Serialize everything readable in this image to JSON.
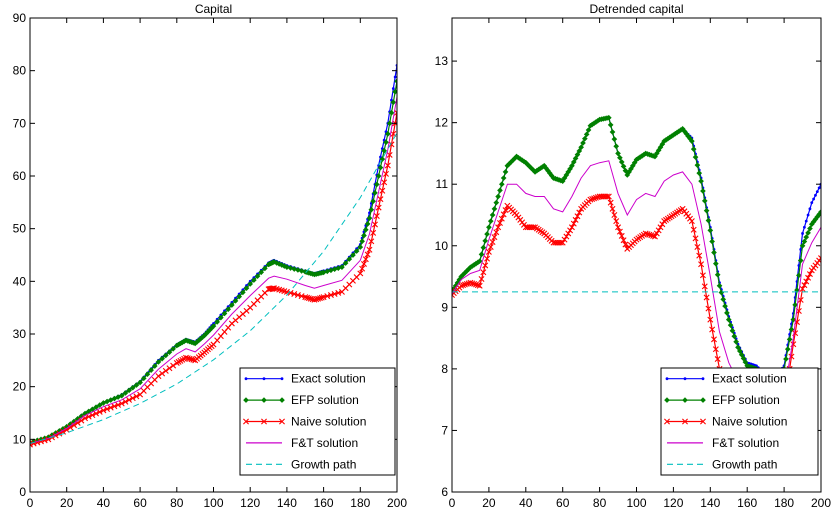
{
  "chart_data": [
    {
      "type": "line",
      "title": "Capital",
      "xlabel": "",
      "ylabel": "",
      "xlim": [
        0,
        200
      ],
      "ylim": [
        0,
        90
      ],
      "xticks": [
        0,
        20,
        40,
        60,
        80,
        100,
        120,
        140,
        160,
        180,
        200
      ],
      "yticks": [
        0,
        10,
        20,
        30,
        40,
        50,
        60,
        70,
        80,
        90
      ],
      "grid": false,
      "legend_position": "bottom-right",
      "series": [
        {
          "name": "Exact solution",
          "color": "#0000ff",
          "style": "solid",
          "marker": "dot",
          "x": [
            0,
            10,
            20,
            30,
            40,
            50,
            60,
            70,
            80,
            85,
            90,
            95,
            100,
            110,
            120,
            130,
            133,
            140,
            150,
            155,
            160,
            170,
            180,
            185,
            190,
            195,
            200
          ],
          "y": [
            9.5,
            10.5,
            12.5,
            15,
            17,
            18.5,
            21,
            25,
            28,
            29,
            28.5,
            30,
            32,
            36,
            40,
            43.5,
            44,
            43,
            42,
            41.5,
            42,
            43,
            47,
            53,
            62,
            70,
            81
          ]
        },
        {
          "name": "EFP solution",
          "color": "#008000",
          "style": "solid",
          "marker": "diamond",
          "x": [
            0,
            10,
            20,
            30,
            40,
            50,
            60,
            70,
            80,
            85,
            90,
            95,
            100,
            110,
            120,
            130,
            133,
            140,
            150,
            155,
            160,
            170,
            180,
            185,
            190,
            195,
            200
          ],
          "y": [
            9.4,
            10.4,
            12.4,
            14.9,
            16.9,
            18.3,
            20.8,
            24.7,
            27.8,
            28.8,
            28.2,
            29.7,
            31.5,
            35.5,
            39.5,
            43.2,
            43.7,
            42.7,
            41.8,
            41.3,
            41.7,
            42.7,
            46.5,
            52,
            60,
            68,
            78
          ]
        },
        {
          "name": "Naive solution",
          "color": "#ff0000",
          "style": "solid",
          "marker": "x",
          "x": [
            0,
            10,
            20,
            30,
            40,
            50,
            60,
            70,
            80,
            85,
            90,
            95,
            100,
            110,
            120,
            130,
            133,
            140,
            150,
            155,
            160,
            170,
            180,
            185,
            190,
            195,
            200
          ],
          "y": [
            9,
            10,
            11.8,
            14,
            15.5,
            16.8,
            18.5,
            22,
            24.5,
            25.5,
            25,
            26.5,
            28,
            32,
            35,
            38.5,
            38.7,
            38,
            37,
            36.5,
            37,
            38,
            41.5,
            46,
            54,
            62,
            72
          ]
        },
        {
          "name": "F&T solution",
          "color": "#cc00cc",
          "style": "solid",
          "marker": "none",
          "x": [
            0,
            10,
            20,
            30,
            40,
            50,
            60,
            70,
            80,
            85,
            90,
            95,
            100,
            110,
            120,
            130,
            133,
            140,
            150,
            155,
            160,
            170,
            180,
            185,
            190,
            195,
            200
          ],
          "y": [
            9.2,
            10.2,
            12.1,
            14.5,
            16.2,
            17.5,
            19.6,
            23.3,
            26.2,
            27.2,
            26.6,
            28.1,
            29.8,
            33.8,
            37.3,
            40.6,
            41,
            40.4,
            39.2,
            38.7,
            39.2,
            40.2,
            44,
            49,
            57,
            65,
            75
          ]
        },
        {
          "name": "Growth path",
          "color": "#00bfbf",
          "style": "dashed",
          "marker": "none",
          "x": [
            0,
            20,
            40,
            60,
            80,
            100,
            120,
            140,
            160,
            180,
            200
          ],
          "y": [
            9.2,
            11.25,
            13.75,
            16.8,
            20.5,
            25.1,
            30.6,
            37.4,
            45.7,
            55.9,
            68.2
          ]
        }
      ]
    },
    {
      "type": "line",
      "title": "Detrended capital",
      "xlabel": "",
      "ylabel": "",
      "xlim": [
        0,
        200
      ],
      "ylim": [
        6,
        13.7
      ],
      "xticks": [
        0,
        20,
        40,
        60,
        80,
        100,
        120,
        140,
        160,
        180,
        200
      ],
      "yticks": [
        6,
        7,
        8,
        9,
        10,
        11,
        12,
        13
      ],
      "grid": false,
      "legend_position": "bottom-right",
      "series": [
        {
          "name": "Exact solution",
          "color": "#0000ff",
          "style": "solid",
          "marker": "dot",
          "x": [
            0,
            5,
            10,
            15,
            20,
            25,
            30,
            35,
            40,
            45,
            50,
            55,
            60,
            65,
            70,
            75,
            80,
            85,
            90,
            95,
            100,
            105,
            110,
            115,
            120,
            125,
            130,
            135,
            140,
            145,
            150,
            155,
            160,
            165,
            170,
            175,
            180,
            185,
            190,
            195,
            200
          ],
          "y": [
            9.25,
            9.5,
            9.65,
            9.75,
            10.3,
            10.8,
            11.3,
            11.45,
            11.35,
            11.2,
            11.3,
            11.1,
            11.05,
            11.3,
            11.6,
            11.95,
            12.05,
            12.08,
            11.5,
            11.15,
            11.4,
            11.5,
            11.45,
            11.7,
            11.8,
            11.9,
            11.75,
            11.1,
            10.3,
            9.4,
            8.85,
            8.4,
            8.1,
            8.05,
            7.9,
            7.85,
            8.05,
            8.9,
            10.2,
            10.7,
            11.0
          ]
        },
        {
          "name": "EFP solution",
          "color": "#008000",
          "style": "solid",
          "marker": "diamond",
          "x": [
            0,
            5,
            10,
            15,
            20,
            25,
            30,
            35,
            40,
            45,
            50,
            55,
            60,
            65,
            70,
            75,
            80,
            85,
            90,
            95,
            100,
            105,
            110,
            115,
            120,
            125,
            130,
            135,
            140,
            145,
            150,
            155,
            160,
            165,
            170,
            175,
            180,
            185,
            190,
            195,
            200
          ],
          "y": [
            9.25,
            9.5,
            9.65,
            9.75,
            10.3,
            10.8,
            11.3,
            11.45,
            11.35,
            11.2,
            11.3,
            11.1,
            11.05,
            11.3,
            11.6,
            11.95,
            12.05,
            12.08,
            11.5,
            11.15,
            11.4,
            11.5,
            11.45,
            11.7,
            11.8,
            11.9,
            11.7,
            11.05,
            10.25,
            9.35,
            8.8,
            8.35,
            8.05,
            8.0,
            7.85,
            7.8,
            8.0,
            8.8,
            10.0,
            10.35,
            10.55
          ]
        },
        {
          "name": "Naive solution",
          "color": "#ff0000",
          "style": "solid",
          "marker": "x",
          "x": [
            0,
            5,
            10,
            15,
            20,
            25,
            30,
            35,
            40,
            45,
            50,
            55,
            60,
            65,
            70,
            75,
            80,
            85,
            90,
            95,
            100,
            105,
            110,
            115,
            120,
            125,
            130,
            135,
            140,
            145,
            150,
            155,
            160,
            165,
            170,
            175,
            180,
            185,
            190,
            195,
            200
          ],
          "y": [
            9.2,
            9.35,
            9.4,
            9.35,
            9.9,
            10.3,
            10.65,
            10.5,
            10.3,
            10.3,
            10.2,
            10.05,
            10.05,
            10.3,
            10.6,
            10.75,
            10.8,
            10.8,
            10.3,
            9.95,
            10.1,
            10.2,
            10.15,
            10.4,
            10.5,
            10.6,
            10.4,
            9.7,
            8.8,
            8.0,
            7.55,
            7.3,
            7.1,
            7.0,
            6.95,
            7.0,
            7.4,
            8.4,
            9.3,
            9.6,
            9.8
          ]
        },
        {
          "name": "F&T solution",
          "color": "#cc00cc",
          "style": "solid",
          "marker": "none",
          "x": [
            0,
            5,
            10,
            15,
            20,
            25,
            30,
            35,
            40,
            45,
            50,
            55,
            60,
            65,
            70,
            75,
            80,
            85,
            90,
            95,
            100,
            105,
            110,
            115,
            120,
            125,
            130,
            135,
            140,
            145,
            150,
            155,
            160,
            165,
            170,
            175,
            180,
            185,
            190,
            195,
            200
          ],
          "y": [
            9.22,
            9.45,
            9.55,
            9.6,
            10.1,
            10.55,
            11.0,
            11.0,
            10.85,
            10.8,
            10.8,
            10.6,
            10.55,
            10.8,
            11.1,
            11.3,
            11.35,
            11.38,
            10.85,
            10.5,
            10.75,
            10.85,
            10.8,
            11.05,
            11.15,
            11.2,
            11.0,
            10.35,
            9.5,
            8.6,
            8.1,
            7.8,
            7.55,
            7.45,
            7.35,
            7.3,
            7.6,
            8.5,
            9.7,
            10.05,
            10.3
          ]
        },
        {
          "name": "Growth path",
          "color": "#00bfbf",
          "style": "dashed",
          "marker": "none",
          "x": [
            0,
            200
          ],
          "y": [
            9.25,
            9.25
          ]
        }
      ]
    }
  ]
}
